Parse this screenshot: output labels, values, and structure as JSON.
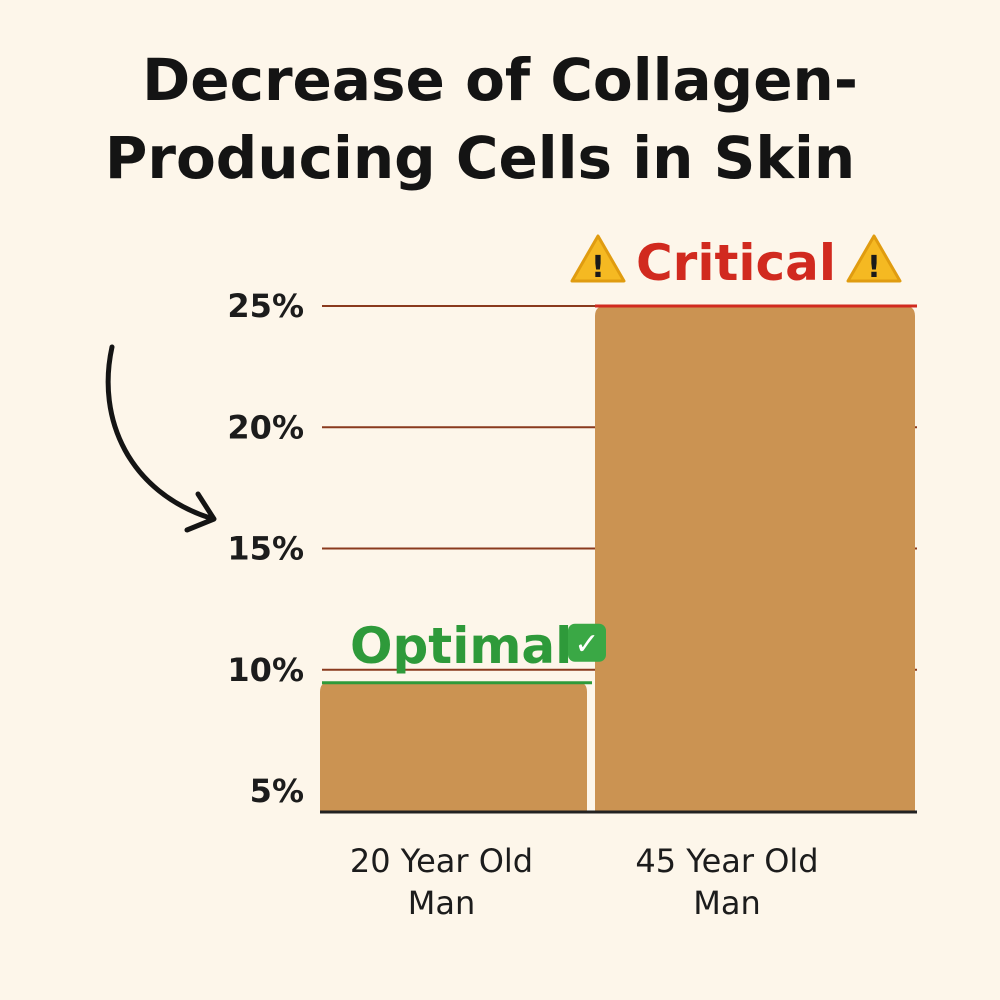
{
  "chart_data": {
    "type": "bar",
    "title_lines": [
      "Decrease of Collagen-",
      "Producing Cells in Skin"
    ],
    "categories": [
      [
        "20 Year Old",
        "Man"
      ],
      [
        "45 Year Old",
        "Man"
      ]
    ],
    "values": [
      9.5,
      25
    ],
    "y_ticks": [
      {
        "value": 5,
        "label": "5%"
      },
      {
        "value": 10,
        "label": "10%"
      },
      {
        "value": 15,
        "label": "15%"
      },
      {
        "value": 20,
        "label": "20%"
      },
      {
        "value": 25,
        "label": "25%"
      }
    ],
    "ylim": [
      5,
      25
    ],
    "grid": true,
    "annotations": [
      {
        "text": "Optimal",
        "value": 10,
        "bar": 0,
        "symbol": "✓",
        "color": "#2e9a3a",
        "icon": "check-icon"
      },
      {
        "text": "Critical",
        "value": 25,
        "bar": 1,
        "symbol": "!",
        "color": "#d12a1f",
        "icon": "warning-icon"
      }
    ],
    "colors": {
      "bar": "#cb9352",
      "grid": "#8a3a1e",
      "axis": "#222222",
      "background": "#fdf6ea"
    }
  }
}
